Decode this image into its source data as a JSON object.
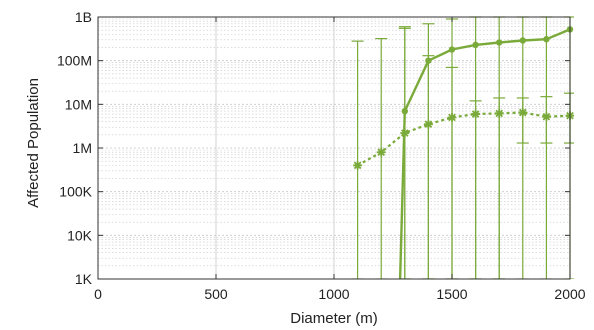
{
  "chart_data": {
    "type": "line",
    "title": "",
    "xlabel": "Diameter (m)",
    "ylabel": "Affected Population",
    "xlim": [
      0,
      2000
    ],
    "ylim": [
      1000,
      1000000000
    ],
    "yscale": "log",
    "grid": true,
    "x_ticks": [
      {
        "value": 0,
        "label": "0"
      },
      {
        "value": 500,
        "label": "500"
      },
      {
        "value": 1000,
        "label": "1000"
      },
      {
        "value": 1500,
        "label": "1500"
      },
      {
        "value": 2000,
        "label": "2000"
      }
    ],
    "y_ticks": [
      {
        "value": 1000,
        "label": "1K"
      },
      {
        "value": 10000,
        "label": "10K"
      },
      {
        "value": 100000,
        "label": "100K"
      },
      {
        "value": 1000000,
        "label": "1M"
      },
      {
        "value": 10000000,
        "label": "10M"
      },
      {
        "value": 100000000,
        "label": "100M"
      },
      {
        "value": 1000000000,
        "label": "1B"
      }
    ],
    "colors": {
      "series": "#7aaa3a",
      "grid": "#c8c8c8",
      "axis": "#333333"
    },
    "series": [
      {
        "style": "solid",
        "marker": "dot",
        "x": [
          1280,
          1300,
          1400,
          1500,
          1600,
          1700,
          1800,
          1900,
          2000
        ],
        "y": [
          1000,
          7000000,
          100000000,
          180000000,
          230000000,
          260000000,
          290000000,
          310000000,
          520000000
        ],
        "err_low": [
          null,
          1000,
          1000,
          1000,
          1000,
          1000,
          1000,
          1000,
          1000
        ],
        "err_high": [
          null,
          600000000,
          700000000,
          900000000,
          1000000000,
          1000000000,
          1000000000,
          1000000000,
          1000000000
        ]
      },
      {
        "style": "dashed",
        "marker": "star",
        "x": [
          1100,
          1200,
          1300,
          1400,
          1500,
          1600,
          1700,
          1800,
          1900,
          2000
        ],
        "y": [
          400000,
          800000,
          2200000,
          3500000,
          5000000,
          6000000,
          6200000,
          6500000,
          5200000,
          5500000
        ],
        "err_low": [
          1000,
          1000,
          1000,
          1000,
          1000,
          1000,
          1000,
          1300000,
          1300000,
          1300000
        ],
        "err_high": [
          280000000,
          320000000,
          550000000,
          130000000,
          70000000,
          12000000,
          14000000,
          14000000,
          15000000,
          18000000
        ]
      }
    ]
  }
}
